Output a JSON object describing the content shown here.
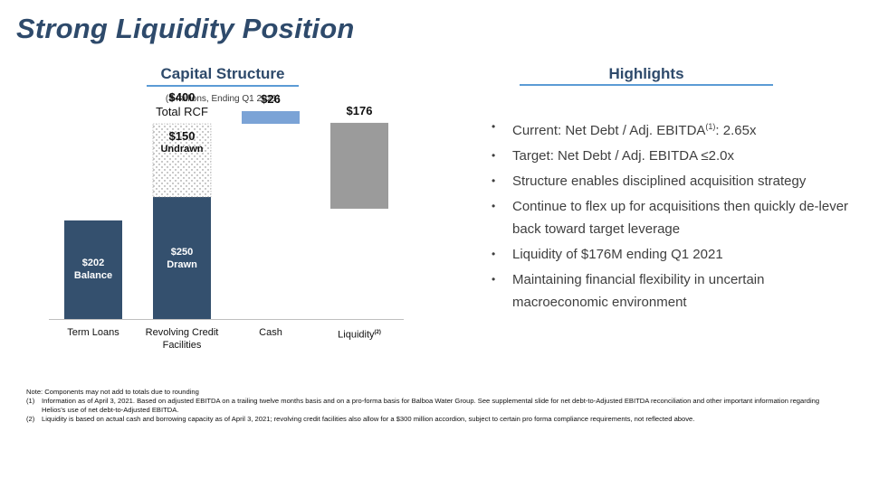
{
  "title": "Strong Liquidity Position",
  "capital_structure": {
    "heading": "Capital Structure",
    "subtitle": "($ millions, Ending Q1 2021)"
  },
  "highlights": {
    "heading": "Highlights",
    "items": [
      {
        "text": "Current: Net Debt / Adj. EBITDA",
        "sup": "(1)",
        "after": ": 2.65x"
      },
      {
        "text": "Target: Net Debt / Adj. EBITDA ≤2.0x",
        "sup": "",
        "after": ""
      },
      {
        "text": "Structure enables disciplined acquisition strategy",
        "sup": "",
        "after": ""
      },
      {
        "text": "Continue to flex up for acquisitions then quickly de-lever back toward target leverage",
        "sup": "",
        "after": ""
      },
      {
        "text": "Liquidity of $176M ending Q1 2021",
        "sup": "",
        "after": ""
      },
      {
        "text": "Maintaining financial flexibility in uncertain macroeconomic environment",
        "sup": "",
        "after": ""
      }
    ]
  },
  "chart_data": {
    "type": "bar",
    "categories": [
      "Term Loans",
      "Revolving Credit Facilities",
      "Cash",
      "Liquidity"
    ],
    "category_sups": [
      "",
      "",
      "",
      "(2)"
    ],
    "segments": [
      {
        "category": 0,
        "base": 0,
        "value": 202,
        "fill": "#34506e",
        "label_value": "$202",
        "label_text": "Balance"
      },
      {
        "category": 1,
        "base": 0,
        "value": 250,
        "fill": "#34506e",
        "label_value": "$250",
        "label_text": "Drawn"
      },
      {
        "category": 1,
        "base": 250,
        "value": 150,
        "fill": "dots",
        "label_value": "$150",
        "label_text": "Undrawn"
      },
      {
        "category": 2,
        "base": 400,
        "value": 26,
        "fill": "#7ba3d6",
        "label_value": "",
        "label_text": ""
      },
      {
        "category": 3,
        "base": 226,
        "value": 176,
        "fill": "#9b9b9b",
        "label_value": "",
        "label_text": ""
      }
    ],
    "top_labels": [
      {
        "category": 1,
        "value": "$400",
        "sub": "Total RCF"
      },
      {
        "category": 2,
        "value": "$26",
        "sub": ""
      },
      {
        "category": 3,
        "value": "$176",
        "sub": ""
      }
    ],
    "ylim": [
      0,
      402
    ],
    "colors": {
      "navy": "#34506e",
      "light_blue": "#7ba3d6",
      "gray": "#9b9b9b",
      "dots": "#7a7a7a"
    }
  },
  "notes": {
    "header": "Note: Components may not add to totals due to rounding",
    "items": [
      {
        "num": "(1)",
        "text": "Information as of April 3, 2021. Based on adjusted EBITDA on a trailing twelve months basis and on a pro-forma basis for Balboa Water Group. See supplemental slide for net debt-to-Adjusted EBITDA reconciliation and other important information regarding Helios’s use of net debt-to-Adjusted EBITDA."
      },
      {
        "num": "(2)",
        "text": "Liquidity is based on actual cash and borrowing capacity as of April 3, 2021; revolving credit facilities also allow for a $300 million accordion, subject to certain pro forma compliance requirements, not reflected above."
      }
    ]
  }
}
